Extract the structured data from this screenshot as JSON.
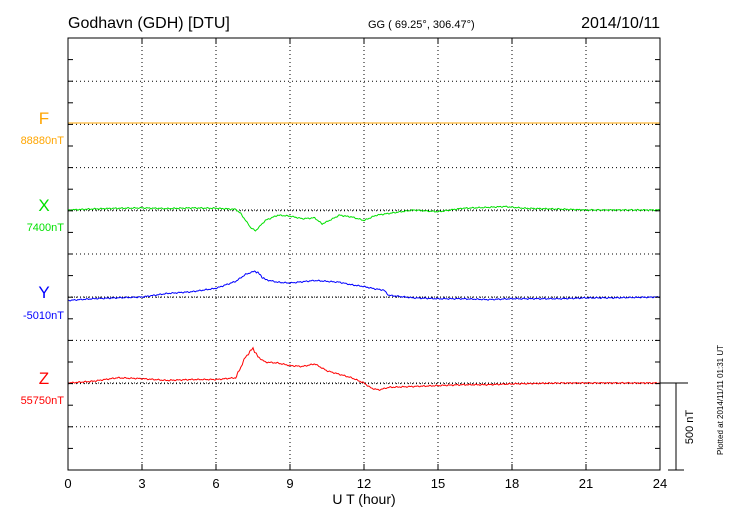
{
  "header": {
    "station": "Godhavn (GDH)  [DTU]",
    "coords": "GG ( 69.25°, 306.47°)",
    "date": "2014/10/11"
  },
  "side_note": "Plotted at 2014/11/11 01:31  UT",
  "scale_label": "500 nT",
  "chart_data": {
    "type": "line",
    "xlabel": "U T (hour)",
    "xlim": [
      0,
      24
    ],
    "xticks": [
      0,
      3,
      6,
      9,
      12,
      15,
      18,
      21,
      24
    ],
    "grid": true,
    "scale_bar_nT": 500,
    "series": [
      {
        "name": "F",
        "baseline_label": "88880nT",
        "color": "#ffa500",
        "points": [
          [
            0,
            0
          ],
          [
            24,
            0
          ]
        ]
      },
      {
        "name": "X",
        "baseline_label": "7400nT",
        "color": "#00e000",
        "points": [
          [
            0,
            0
          ],
          [
            1,
            6
          ],
          [
            2,
            10
          ],
          [
            3,
            12
          ],
          [
            4,
            8
          ],
          [
            5,
            12
          ],
          [
            6,
            10
          ],
          [
            6.8,
            4
          ],
          [
            7.0,
            -20
          ],
          [
            7.2,
            -60
          ],
          [
            7.4,
            -100
          ],
          [
            7.6,
            -120
          ],
          [
            7.8,
            -90
          ],
          [
            8.0,
            -60
          ],
          [
            8.5,
            -30
          ],
          [
            9.0,
            -35
          ],
          [
            9.5,
            -50
          ],
          [
            10.0,
            -45
          ],
          [
            10.3,
            -80
          ],
          [
            10.6,
            -60
          ],
          [
            11.0,
            -30
          ],
          [
            11.5,
            -40
          ],
          [
            12.0,
            -60
          ],
          [
            12.5,
            -30
          ],
          [
            13.0,
            -20
          ],
          [
            14.0,
            0
          ],
          [
            15.0,
            -10
          ],
          [
            16.0,
            10
          ],
          [
            17.0,
            15
          ],
          [
            17.7,
            20
          ],
          [
            18.5,
            10
          ],
          [
            20.0,
            5
          ],
          [
            21.0,
            0
          ],
          [
            22.0,
            0
          ],
          [
            24.0,
            0
          ]
        ]
      },
      {
        "name": "Y",
        "baseline_label": "-5010nT",
        "color": "#0000ff",
        "points": [
          [
            0,
            -20
          ],
          [
            1,
            -10
          ],
          [
            2,
            -5
          ],
          [
            3,
            0
          ],
          [
            4,
            20
          ],
          [
            5,
            30
          ],
          [
            6,
            50
          ],
          [
            6.8,
            90
          ],
          [
            7.2,
            130
          ],
          [
            7.6,
            150
          ],
          [
            8.0,
            100
          ],
          [
            8.5,
            85
          ],
          [
            9.0,
            80
          ],
          [
            10.0,
            95
          ],
          [
            10.5,
            90
          ],
          [
            11.0,
            85
          ],
          [
            11.5,
            70
          ],
          [
            12.0,
            60
          ],
          [
            12.5,
            45
          ],
          [
            12.8,
            40
          ],
          [
            13.0,
            10
          ],
          [
            14.0,
            -5
          ],
          [
            15.0,
            -10
          ],
          [
            16.0,
            -10
          ],
          [
            17.0,
            -15
          ],
          [
            18.0,
            -10
          ],
          [
            20.0,
            -10
          ],
          [
            21.0,
            -5
          ],
          [
            22.0,
            -5
          ],
          [
            24.0,
            0
          ]
        ]
      },
      {
        "name": "Z",
        "baseline_label": "55750nT",
        "color": "#ff0000",
        "points": [
          [
            0,
            0
          ],
          [
            1,
            10
          ],
          [
            2,
            30
          ],
          [
            3,
            25
          ],
          [
            4,
            15
          ],
          [
            5,
            20
          ],
          [
            6,
            20
          ],
          [
            6.8,
            30
          ],
          [
            7.2,
            150
          ],
          [
            7.5,
            200
          ],
          [
            7.7,
            150
          ],
          [
            8.0,
            120
          ],
          [
            8.5,
            115
          ],
          [
            9.0,
            100
          ],
          [
            9.5,
            95
          ],
          [
            10.0,
            110
          ],
          [
            10.5,
            70
          ],
          [
            11.0,
            50
          ],
          [
            11.5,
            30
          ],
          [
            12.0,
            0
          ],
          [
            12.3,
            -30
          ],
          [
            12.6,
            -40
          ],
          [
            13.0,
            -25
          ],
          [
            14.0,
            -20
          ],
          [
            15.0,
            -15
          ],
          [
            16.0,
            -10
          ],
          [
            17.0,
            -10
          ],
          [
            18.0,
            -5
          ],
          [
            20.0,
            0
          ],
          [
            22.0,
            0
          ],
          [
            24.0,
            0
          ]
        ]
      }
    ]
  }
}
